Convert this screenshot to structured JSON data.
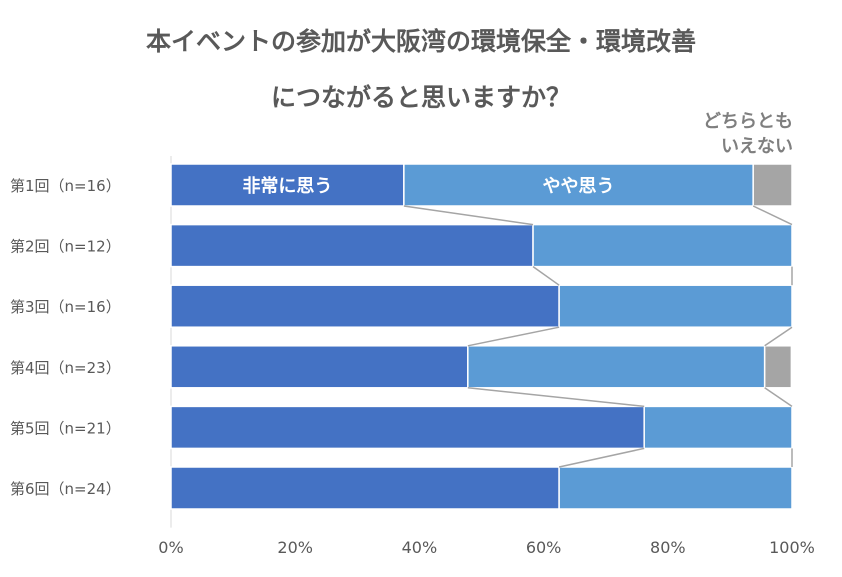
{
  "chart_data": {
    "type": "bar",
    "orientation": "horizontal",
    "stacked": "percent",
    "title_lines": [
      "本イベントの参加が大阪湾の環境保全・環境改善",
      "につながると思いますか？"
    ],
    "categories": [
      "第1回（n=16）",
      "第2回（n=12）",
      "第3回（n=16）",
      "第4回（n=23）",
      "第5回（n=21）",
      "第6回（n=24）"
    ],
    "series": [
      {
        "name": "非常に思う",
        "color": "#4472c4",
        "values": [
          37.5,
          58.3,
          62.5,
          47.8,
          76.2,
          62.5
        ]
      },
      {
        "name": "やや思う",
        "color": "#5b9bd5",
        "values": [
          56.25,
          41.7,
          37.5,
          47.8,
          23.8,
          37.5
        ]
      },
      {
        "name": "どちらともいえない",
        "label_lines": [
          "どちらとも",
          "いえない"
        ],
        "color": "#a5a5a5",
        "values": [
          6.25,
          0,
          0,
          4.3,
          0,
          0
        ]
      }
    ],
    "xlim": [
      0,
      100
    ],
    "xticks": [
      "0%",
      "20%",
      "40%",
      "60%",
      "80%",
      "100%"
    ],
    "series_lines": true,
    "grid": false
  }
}
